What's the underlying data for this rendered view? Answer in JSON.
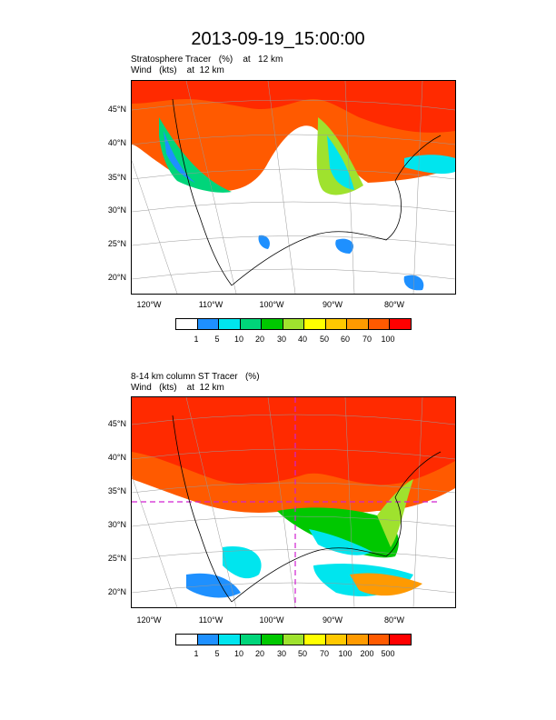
{
  "title": "2013-09-19_15:00:00",
  "panel1": {
    "line1": "Stratosphere Tracer   (%)    at   12 km",
    "line2": "Wind   (kts)    at  12 km",
    "colorbar": [
      "1",
      "5",
      "10",
      "20",
      "30",
      "40",
      "50",
      "60",
      "70",
      "100"
    ]
  },
  "panel2": {
    "line1": "8-14 km column ST Tracer   (%)",
    "line2": "Wind   (kts)    at  12 km",
    "colorbar": [
      "1",
      "5",
      "10",
      "20",
      "30",
      "50",
      "70",
      "100",
      "200",
      "500"
    ]
  },
  "lat_labels": [
    "45°N",
    "40°N",
    "35°N",
    "30°N",
    "25°N",
    "20°N"
  ],
  "lon_labels": [
    "120°W",
    "110°W",
    "100°W",
    "90°W",
    "80°W"
  ],
  "colors": [
    "#ffffff",
    "#1e90ff",
    "#00e5ee",
    "#00d57a",
    "#00c800",
    "#9fe22e",
    "#ffff00",
    "#ffc800",
    "#ff9a00",
    "#ff5a00",
    "#ff0000"
  ]
}
